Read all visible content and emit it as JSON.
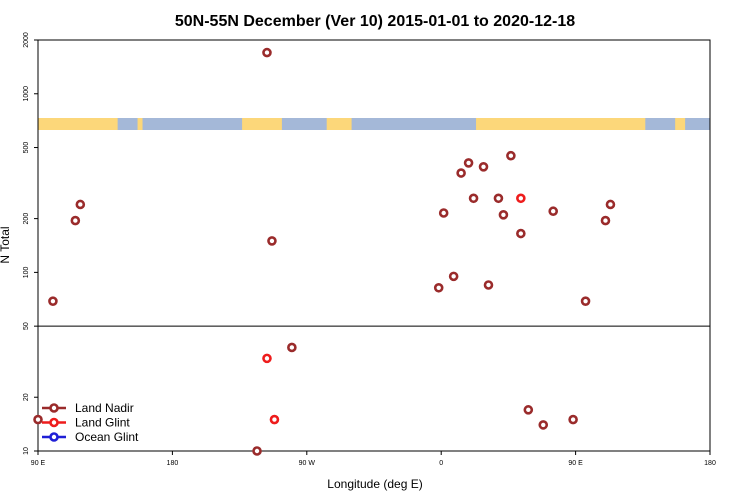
{
  "chart_data": {
    "type": "scatter",
    "title": "50N-55N December (Ver 10)   2015-01-01 to 2020-12-18",
    "xlabel": "Longitude (deg E)",
    "ylabel": "N Total",
    "xlim": [
      -90,
      180
    ],
    "ylim_log": [
      10,
      2000
    ],
    "x_ticks": [
      {
        "value": -90,
        "label": "90 E"
      },
      {
        "value": -36,
        "label": "180"
      },
      {
        "value": 18,
        "label": "90 W"
      },
      {
        "value": 72,
        "label": "0"
      },
      {
        "value": 126,
        "label": "90 E"
      },
      {
        "value": 180,
        "label": "180"
      }
    ],
    "y_ticks": [
      {
        "value": 10,
        "label": "10"
      },
      {
        "value": 20,
        "label": "20"
      },
      {
        "value": 50,
        "label": "50"
      },
      {
        "value": 100,
        "label": "100"
      },
      {
        "value": 200,
        "label": "200"
      },
      {
        "value": 500,
        "label": "500"
      },
      {
        "value": 1000,
        "label": "1000"
      },
      {
        "value": 2000,
        "label": "2000"
      }
    ],
    "reference_line": 50,
    "land_mask": {
      "ocean_color": "#a4b8d8",
      "land_color": "#fcd77a",
      "land_segments": [
        [
          -90,
          -58
        ],
        [
          -50,
          -48
        ],
        [
          -8,
          8
        ],
        [
          26,
          36
        ],
        [
          86,
          154
        ],
        [
          166,
          170
        ]
      ]
    },
    "series": [
      {
        "name": "Land Nadir",
        "color": "#9a2b2b",
        "points": [
          {
            "x": -90,
            "y": 15
          },
          {
            "x": -84,
            "y": 69
          },
          {
            "x": -75,
            "y": 195
          },
          {
            "x": -73,
            "y": 240
          },
          {
            "x": 2,
            "y": 1700
          },
          {
            "x": 4,
            "y": 150
          },
          {
            "x": -2,
            "y": 10
          },
          {
            "x": 12,
            "y": 38
          },
          {
            "x": 71,
            "y": 82
          },
          {
            "x": 73,
            "y": 215
          },
          {
            "x": 77,
            "y": 95
          },
          {
            "x": 80,
            "y": 360
          },
          {
            "x": 83,
            "y": 410
          },
          {
            "x": 85,
            "y": 260
          },
          {
            "x": 89,
            "y": 390
          },
          {
            "x": 91,
            "y": 85
          },
          {
            "x": 95,
            "y": 260
          },
          {
            "x": 97,
            "y": 210
          },
          {
            "x": 100,
            "y": 450
          },
          {
            "x": 104,
            "y": 165
          },
          {
            "x": 107,
            "y": 17
          },
          {
            "x": 113,
            "y": 14
          },
          {
            "x": 117,
            "y": 220
          },
          {
            "x": 125,
            "y": 15
          },
          {
            "x": 130,
            "y": 69
          },
          {
            "x": 138,
            "y": 195
          },
          {
            "x": 140,
            "y": 240
          }
        ]
      },
      {
        "name": "Land Glint",
        "color": "#ee1c1c",
        "points": [
          {
            "x": 2,
            "y": 33
          },
          {
            "x": 5,
            "y": 15
          },
          {
            "x": 104,
            "y": 260
          }
        ]
      },
      {
        "name": "Ocean Glint",
        "color": "#1f1fd6",
        "points": []
      }
    ],
    "legend_position": "bottom-left"
  }
}
